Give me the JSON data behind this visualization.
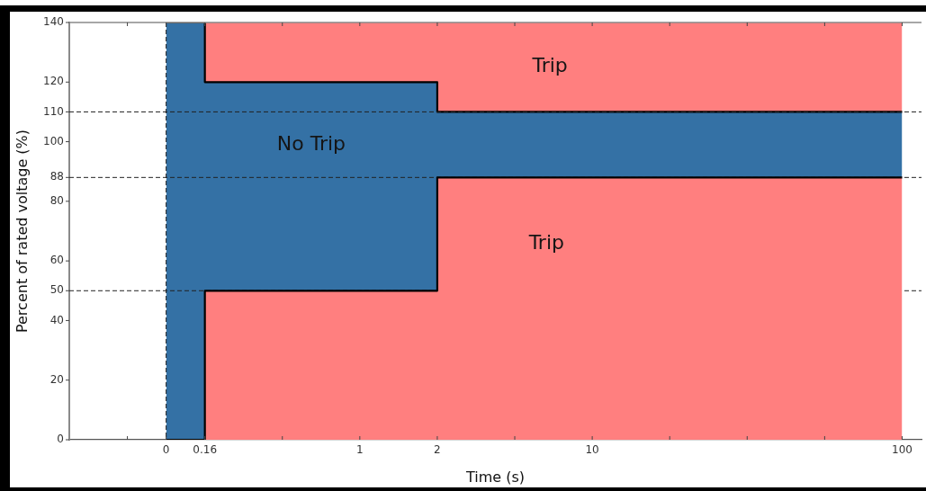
{
  "chart_data": {
    "type": "area",
    "stacked": true,
    "xlabel": "Time (s)",
    "ylabel": "Percent of rated voltage (%)",
    "categories": [
      null,
      null,
      "0",
      "0.16",
      null,
      null,
      null,
      "1",
      null,
      "2",
      null,
      null,
      null,
      "10",
      null,
      null,
      null,
      null,
      null,
      null,
      null,
      "100"
    ],
    "series": [
      {
        "name": "Trip",
        "color": "#ff7f7f",
        "x": [
          "0",
          "0.16",
          "0.16",
          "2",
          "2",
          "100"
        ],
        "values": [
          0,
          0,
          50,
          50,
          88,
          88
        ]
      },
      {
        "name": "No Trip",
        "color": "#3471a5",
        "x": [
          "0",
          "0.16",
          "0.16",
          "2",
          "2",
          "100"
        ],
        "values": [
          140,
          140,
          70,
          70,
          22,
          22
        ]
      },
      {
        "name": "Trip",
        "color": "#ff7f7f",
        "x": [
          "0",
          "0.16",
          "0.16",
          "2",
          "2",
          "100"
        ],
        "values": [
          0,
          0,
          20,
          20,
          30,
          30
        ]
      }
    ],
    "ylim": [
      0,
      140
    ],
    "yticks": [
      0,
      20,
      40,
      50,
      60,
      80,
      88,
      100,
      110,
      120,
      140
    ],
    "ref_lines": [
      {
        "axis": "y",
        "value": 110,
        "line_style": "dashed",
        "color": "#222222"
      },
      {
        "axis": "y",
        "value": 88,
        "line_style": "dashed",
        "color": "#222222"
      },
      {
        "axis": "y",
        "value": 50,
        "line_style": "dashed",
        "color": "#222222"
      },
      {
        "axis": "x",
        "value": "0",
        "line_style": "dashed",
        "color": "#222222"
      }
    ]
  }
}
